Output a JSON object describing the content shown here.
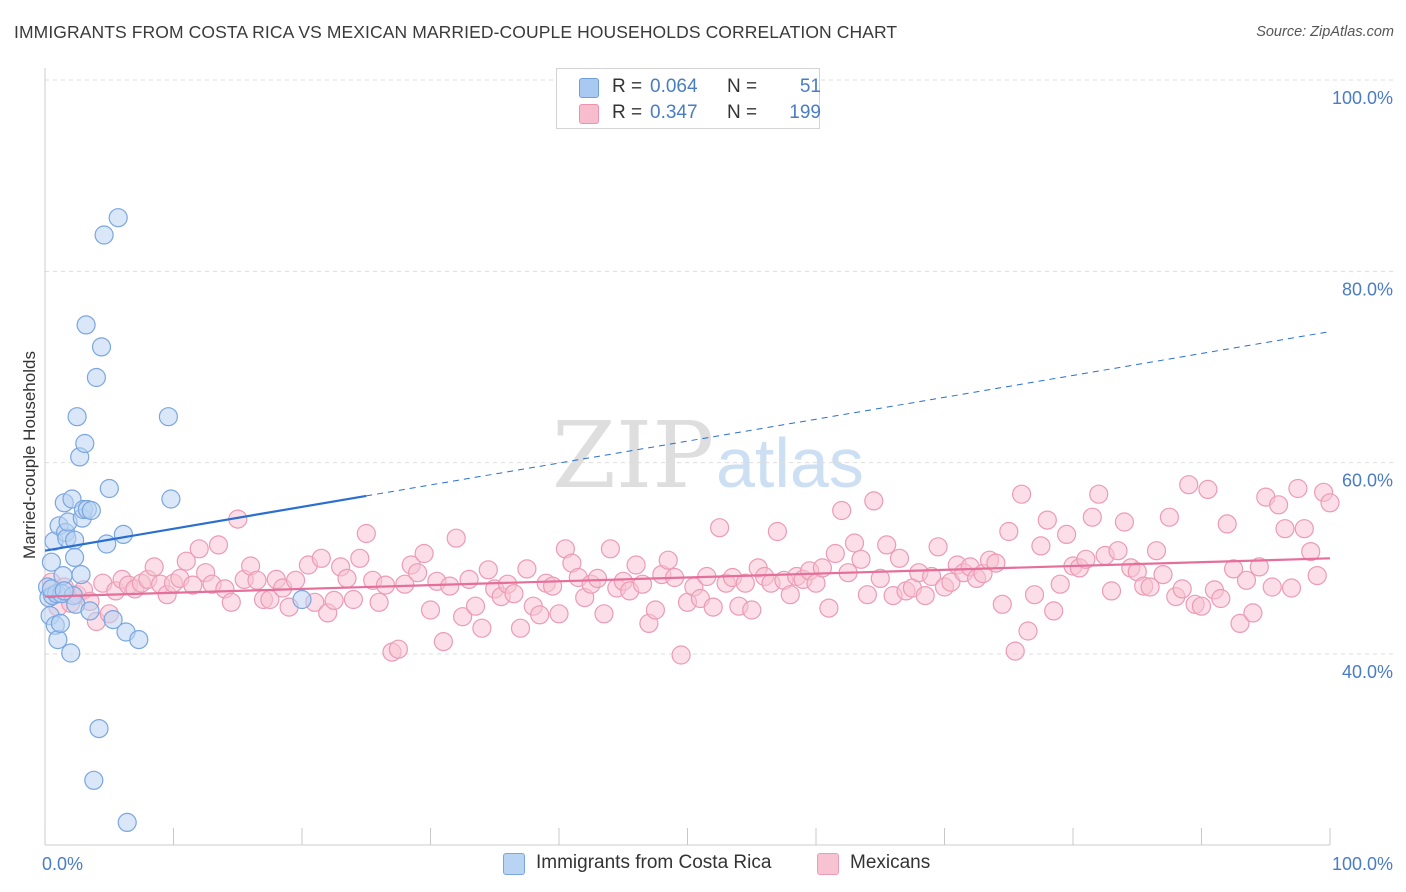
{
  "header": {
    "title": "IMMIGRANTS FROM COSTA RICA VS MEXICAN MARRIED-COUPLE HOUSEHOLDS CORRELATION CHART",
    "source": "Source: ZipAtlas.com"
  },
  "watermark": {
    "zip": "ZIP",
    "atlas": "atlas"
  },
  "legend": {
    "r_label": "R =",
    "n_label": "N =",
    "rows": [
      {
        "r": "0.064",
        "n": "51",
        "color": "#a9c9f0",
        "border": "#6f9fdc"
      },
      {
        "r": "0.347",
        "n": "199",
        "color": "#f7bccd",
        "border": "#ee93ae"
      }
    ]
  },
  "colors": {
    "blue_fill": "#b9d3f3",
    "blue_stroke": "#7aa6e0",
    "blue_line": "#2a6fcf",
    "pink_fill": "#f7c3d3",
    "pink_stroke": "#ec9bb5",
    "pink_line": "#e56f9b",
    "grid": "#dddddd",
    "axis_text": "#4a7cc4"
  },
  "chart_data": {
    "type": "scatter",
    "title": "IMMIGRANTS FROM COSTA RICA VS MEXICAN MARRIED-COUPLE HOUSEHOLDS CORRELATION CHART",
    "xlabel": "",
    "ylabel": "Married-couple Households",
    "xlim": [
      0,
      100
    ],
    "ylim": [
      21,
      101
    ],
    "x_tick_labels": [
      "0.0%",
      "100.0%"
    ],
    "y_ticks": [
      40,
      60,
      80,
      100
    ],
    "y_tick_labels": [
      "40.0%",
      "60.0%",
      "80.0%",
      "100.0%"
    ],
    "grid": true,
    "legend_position": "top-center",
    "series": [
      {
        "name": "Immigrants from Costa Rica",
        "r": 0.064,
        "n": 51,
        "trend": {
          "x0": 0,
          "y0": 50.8,
          "x1": 100,
          "y1": 73.7,
          "solid_until": 25
        },
        "points": [
          [
            0.2,
            47.0
          ],
          [
            0.3,
            45.9
          ],
          [
            0.4,
            44.0
          ],
          [
            0.5,
            49.6
          ],
          [
            0.6,
            46.1
          ],
          [
            0.7,
            51.8
          ],
          [
            0.8,
            43.0
          ],
          [
            0.9,
            46.3
          ],
          [
            1.0,
            41.5
          ],
          [
            1.1,
            53.4
          ],
          [
            1.2,
            43.2
          ],
          [
            1.3,
            46.3
          ],
          [
            1.4,
            48.2
          ],
          [
            1.5,
            55.8
          ],
          [
            1.6,
            52.7
          ],
          [
            1.7,
            52.1
          ],
          [
            1.8,
            53.8
          ],
          [
            2.0,
            40.1
          ],
          [
            2.1,
            56.2
          ],
          [
            2.2,
            46.1
          ],
          [
            2.3,
            51.9
          ],
          [
            2.4,
            45.2
          ],
          [
            2.5,
            64.8
          ],
          [
            2.7,
            60.6
          ],
          [
            2.8,
            48.3
          ],
          [
            2.9,
            54.2
          ],
          [
            3.0,
            55.1
          ],
          [
            3.1,
            62.0
          ],
          [
            3.2,
            74.4
          ],
          [
            3.3,
            55.1
          ],
          [
            3.5,
            44.5
          ],
          [
            3.6,
            55.0
          ],
          [
            3.8,
            26.8
          ],
          [
            4.0,
            68.9
          ],
          [
            4.2,
            32.2
          ],
          [
            4.4,
            72.1
          ],
          [
            4.6,
            83.8
          ],
          [
            4.8,
            51.5
          ],
          [
            5.0,
            57.3
          ],
          [
            5.3,
            43.6
          ],
          [
            5.7,
            85.6
          ],
          [
            6.1,
            52.5
          ],
          [
            6.3,
            42.3
          ],
          [
            6.4,
            22.4
          ],
          [
            7.3,
            41.5
          ],
          [
            9.6,
            64.8
          ],
          [
            9.8,
            56.2
          ],
          [
            20.0,
            45.7
          ],
          [
            0.5,
            46.8
          ],
          [
            1.5,
            46.6
          ],
          [
            2.3,
            50.1
          ]
        ]
      },
      {
        "name": "Mexicans",
        "r": 0.347,
        "n": 199,
        "trend": {
          "x0": 0,
          "y0": 46.0,
          "x1": 100,
          "y1": 50.0,
          "solid_until": 100
        },
        "points": [
          [
            0.5,
            47.5
          ],
          [
            1.0,
            44.9
          ],
          [
            1.5,
            47.0
          ],
          [
            2.0,
            45.3
          ],
          [
            2.5,
            46.2
          ],
          [
            3.0,
            46.7
          ],
          [
            3.5,
            45.5
          ],
          [
            4.0,
            43.4
          ],
          [
            4.5,
            47.4
          ],
          [
            5.0,
            44.2
          ],
          [
            5.5,
            46.6
          ],
          [
            6.0,
            47.8
          ],
          [
            6.5,
            47.2
          ],
          [
            7.0,
            46.8
          ],
          [
            7.5,
            47.4
          ],
          [
            8.0,
            47.8
          ],
          [
            8.5,
            49.1
          ],
          [
            9.0,
            47.3
          ],
          [
            9.5,
            46.2
          ],
          [
            10.0,
            47.4
          ],
          [
            10.5,
            47.9
          ],
          [
            11.0,
            49.7
          ],
          [
            11.5,
            47.2
          ],
          [
            12.0,
            51.0
          ],
          [
            12.5,
            48.5
          ],
          [
            13.0,
            47.3
          ],
          [
            13.5,
            51.4
          ],
          [
            14.0,
            46.8
          ],
          [
            14.5,
            45.4
          ],
          [
            15.0,
            54.1
          ],
          [
            15.5,
            47.8
          ],
          [
            16.0,
            49.2
          ],
          [
            16.5,
            47.7
          ],
          [
            17.0,
            45.7
          ],
          [
            17.5,
            45.7
          ],
          [
            18.0,
            47.8
          ],
          [
            18.5,
            46.9
          ],
          [
            19.0,
            44.9
          ],
          [
            19.5,
            47.7
          ],
          [
            20.5,
            49.3
          ],
          [
            21.0,
            45.4
          ],
          [
            21.5,
            50.0
          ],
          [
            22.0,
            44.3
          ],
          [
            22.5,
            45.6
          ],
          [
            23.0,
            49.1
          ],
          [
            23.5,
            47.9
          ],
          [
            24.0,
            45.7
          ],
          [
            24.5,
            50.0
          ],
          [
            25.0,
            52.6
          ],
          [
            25.5,
            47.7
          ],
          [
            26.0,
            45.4
          ],
          [
            26.5,
            47.2
          ],
          [
            27.0,
            40.2
          ],
          [
            27.5,
            40.5
          ],
          [
            28.0,
            47.3
          ],
          [
            28.5,
            49.3
          ],
          [
            29.0,
            48.5
          ],
          [
            29.5,
            50.5
          ],
          [
            30.0,
            44.6
          ],
          [
            30.5,
            47.6
          ],
          [
            31.0,
            41.3
          ],
          [
            31.5,
            47.1
          ],
          [
            32.0,
            52.1
          ],
          [
            32.5,
            43.9
          ],
          [
            33.0,
            47.8
          ],
          [
            33.5,
            45.0
          ],
          [
            34.0,
            42.7
          ],
          [
            34.5,
            48.8
          ],
          [
            35.0,
            46.8
          ],
          [
            35.5,
            46.0
          ],
          [
            36.0,
            47.3
          ],
          [
            36.5,
            46.3
          ],
          [
            37.0,
            42.7
          ],
          [
            37.5,
            48.9
          ],
          [
            38.0,
            45.0
          ],
          [
            38.5,
            44.1
          ],
          [
            39.0,
            47.4
          ],
          [
            39.5,
            47.1
          ],
          [
            40.0,
            44.2
          ],
          [
            40.5,
            51.0
          ],
          [
            41.0,
            49.5
          ],
          [
            41.5,
            48.0
          ],
          [
            42.0,
            45.9
          ],
          [
            42.5,
            47.3
          ],
          [
            43.0,
            47.9
          ],
          [
            43.5,
            44.2
          ],
          [
            44.0,
            51.0
          ],
          [
            44.5,
            46.9
          ],
          [
            45.0,
            47.6
          ],
          [
            45.5,
            46.6
          ],
          [
            46.0,
            49.3
          ],
          [
            46.5,
            47.3
          ],
          [
            47.0,
            43.2
          ],
          [
            47.5,
            44.6
          ],
          [
            48.0,
            48.3
          ],
          [
            48.5,
            49.8
          ],
          [
            49.0,
            48.0
          ],
          [
            49.5,
            39.9
          ],
          [
            50.0,
            45.4
          ],
          [
            50.5,
            47.0
          ],
          [
            51.0,
            45.8
          ],
          [
            51.5,
            48.1
          ],
          [
            52.0,
            44.9
          ],
          [
            52.5,
            53.2
          ],
          [
            53.0,
            47.4
          ],
          [
            53.5,
            48.0
          ],
          [
            54.0,
            45.0
          ],
          [
            54.5,
            47.4
          ],
          [
            55.0,
            44.6
          ],
          [
            55.5,
            49.0
          ],
          [
            56.0,
            48.1
          ],
          [
            56.5,
            47.4
          ],
          [
            57.0,
            52.8
          ],
          [
            57.5,
            47.7
          ],
          [
            58.0,
            46.2
          ],
          [
            58.5,
            48.1
          ],
          [
            59.0,
            47.8
          ],
          [
            59.5,
            48.7
          ],
          [
            60.0,
            47.4
          ],
          [
            60.5,
            49.0
          ],
          [
            61.0,
            44.8
          ],
          [
            61.5,
            50.5
          ],
          [
            62.0,
            55.0
          ],
          [
            62.5,
            48.5
          ],
          [
            63.0,
            51.6
          ],
          [
            63.5,
            49.9
          ],
          [
            64.0,
            46.2
          ],
          [
            64.5,
            56.0
          ],
          [
            65.0,
            47.9
          ],
          [
            65.5,
            51.4
          ],
          [
            66.0,
            46.1
          ],
          [
            66.5,
            50.0
          ],
          [
            67.0,
            46.6
          ],
          [
            67.5,
            46.9
          ],
          [
            68.0,
            48.5
          ],
          [
            68.5,
            46.1
          ],
          [
            69.0,
            48.1
          ],
          [
            69.5,
            51.2
          ],
          [
            70.0,
            47.0
          ],
          [
            70.5,
            47.5
          ],
          [
            71.0,
            49.3
          ],
          [
            71.5,
            48.5
          ],
          [
            72.0,
            49.1
          ],
          [
            72.5,
            47.9
          ],
          [
            73.0,
            48.4
          ],
          [
            73.5,
            49.8
          ],
          [
            74.0,
            49.5
          ],
          [
            74.5,
            45.2
          ],
          [
            75.0,
            52.8
          ],
          [
            75.5,
            40.3
          ],
          [
            76.0,
            56.7
          ],
          [
            76.5,
            42.4
          ],
          [
            77.0,
            46.2
          ],
          [
            77.5,
            51.3
          ],
          [
            78.0,
            54.0
          ],
          [
            78.5,
            44.5
          ],
          [
            79.0,
            47.3
          ],
          [
            79.5,
            52.5
          ],
          [
            80.0,
            49.2
          ],
          [
            80.5,
            49.0
          ],
          [
            81.0,
            49.9
          ],
          [
            81.5,
            54.3
          ],
          [
            82.0,
            56.7
          ],
          [
            82.5,
            50.3
          ],
          [
            83.0,
            46.6
          ],
          [
            83.5,
            50.8
          ],
          [
            84.0,
            53.8
          ],
          [
            84.5,
            49.0
          ],
          [
            85.0,
            48.6
          ],
          [
            85.5,
            47.1
          ],
          [
            86.0,
            47.0
          ],
          [
            86.5,
            50.8
          ],
          [
            87.0,
            48.3
          ],
          [
            87.5,
            54.3
          ],
          [
            88.0,
            46.0
          ],
          [
            88.5,
            46.8
          ],
          [
            89.0,
            57.7
          ],
          [
            89.5,
            45.2
          ],
          [
            90.0,
            45.0
          ],
          [
            90.5,
            57.2
          ],
          [
            91.0,
            46.7
          ],
          [
            91.5,
            45.8
          ],
          [
            92.0,
            53.6
          ],
          [
            92.5,
            48.9
          ],
          [
            93.0,
            43.2
          ],
          [
            93.5,
            47.7
          ],
          [
            94.0,
            44.3
          ],
          [
            94.5,
            49.1
          ],
          [
            95.0,
            56.4
          ],
          [
            95.5,
            47.0
          ],
          [
            96.0,
            55.6
          ],
          [
            96.5,
            53.1
          ],
          [
            97.0,
            46.9
          ],
          [
            97.5,
            57.3
          ],
          [
            98.0,
            53.1
          ],
          [
            98.5,
            50.7
          ],
          [
            99.0,
            48.2
          ],
          [
            99.5,
            56.9
          ],
          [
            100.0,
            55.8
          ]
        ]
      }
    ]
  },
  "bottom_legend": {
    "items": [
      {
        "label": "Immigrants from Costa Rica",
        "color": "#b9d3f3",
        "border": "#7aa6e0"
      },
      {
        "label": "Mexicans",
        "color": "#f7c3d3",
        "border": "#ec9bb5"
      }
    ]
  }
}
